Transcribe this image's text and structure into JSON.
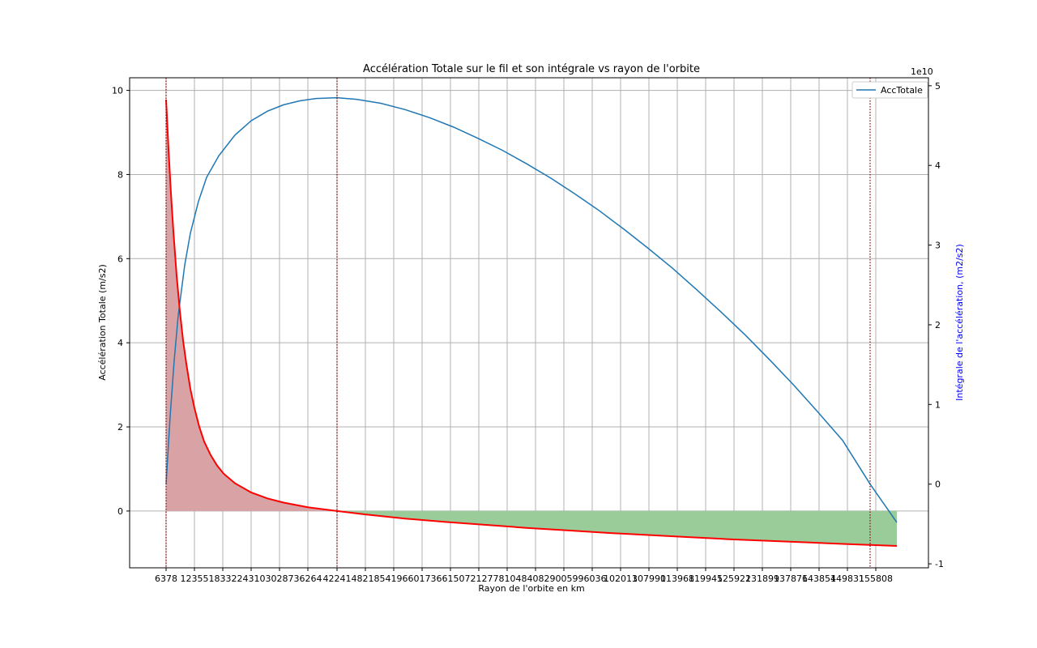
{
  "chart_data": {
    "type": "line",
    "title": "Accélération Totale sur le fil et son intégrale vs rayon de l'orbite",
    "xlabel": "Rayon de l'orbite en km",
    "ylabel": "Accélération Totale (m/s2)",
    "ylabel_right": "Intégrale de l'accélération, (m2/s2)",
    "right_axis_offset_label": "1e10",
    "xlim": [
      160,
      1146
    ],
    "ylim": [
      -1.35,
      10.3
    ],
    "ylim_right": [
      -1.05,
      5.1
    ],
    "x_ticks": [
      "6378",
      "12355",
      "18332",
      "24310",
      "30287",
      "36264",
      "42241",
      "48218",
      "54196",
      "60173",
      "66150",
      "72127",
      "78104",
      "84082",
      "90059",
      "96036",
      "102013",
      "107990",
      "113968",
      "119945",
      "125922",
      "131899",
      "137876",
      "143854",
      "149831",
      "155808"
    ],
    "x_tick_values": [
      205,
      240,
      275,
      310,
      345,
      380,
      416,
      451,
      486,
      521,
      556,
      591,
      626,
      661,
      696,
      731,
      766,
      801,
      836,
      871,
      906,
      941,
      976,
      1011,
      1046,
      1081
    ],
    "y_ticks": [
      0,
      2,
      4,
      6,
      8,
      10
    ],
    "y_ticks_right": [
      -1,
      0,
      1,
      2,
      3,
      4,
      5
    ],
    "x_start": 205,
    "x_geo": 416,
    "x_end": 1107,
    "vlines": [
      205,
      416,
      1074
    ],
    "grid": true,
    "legend_position": "upper-right",
    "series": [
      {
        "name": "AccTotale",
        "axis": "right",
        "color": "#1f77b4",
        "points": [
          [
            205,
            0
          ],
          [
            210,
            0.85
          ],
          [
            215,
            1.55
          ],
          [
            220,
            2.12
          ],
          [
            228,
            2.75
          ],
          [
            235,
            3.15
          ],
          [
            245,
            3.55
          ],
          [
            255,
            3.85
          ],
          [
            270,
            4.12
          ],
          [
            290,
            4.38
          ],
          [
            310,
            4.56
          ],
          [
            330,
            4.68
          ],
          [
            350,
            4.76
          ],
          [
            370,
            4.81
          ],
          [
            390,
            4.84
          ],
          [
            416,
            4.85
          ],
          [
            440,
            4.83
          ],
          [
            470,
            4.78
          ],
          [
            500,
            4.7
          ],
          [
            530,
            4.6
          ],
          [
            560,
            4.48
          ],
          [
            590,
            4.34
          ],
          [
            620,
            4.19
          ],
          [
            650,
            4.02
          ],
          [
            680,
            3.84
          ],
          [
            710,
            3.64
          ],
          [
            740,
            3.43
          ],
          [
            770,
            3.2
          ],
          [
            800,
            2.96
          ],
          [
            830,
            2.71
          ],
          [
            860,
            2.44
          ],
          [
            890,
            2.16
          ],
          [
            920,
            1.87
          ],
          [
            950,
            1.56
          ],
          [
            980,
            1.24
          ],
          [
            1010,
            0.9
          ],
          [
            1040,
            0.55
          ],
          [
            1074,
            0.0
          ],
          [
            1107,
            -0.48
          ]
        ]
      },
      {
        "name": "",
        "axis": "left",
        "color": "#ff0000",
        "points": [
          [
            205,
            9.78
          ],
          [
            208,
            8.6
          ],
          [
            211,
            7.55
          ],
          [
            214,
            6.65
          ],
          [
            218,
            5.6
          ],
          [
            222,
            4.75
          ],
          [
            226,
            4.05
          ],
          [
            230,
            3.5
          ],
          [
            235,
            2.9
          ],
          [
            240,
            2.45
          ],
          [
            246,
            2.0
          ],
          [
            252,
            1.65
          ],
          [
            260,
            1.33
          ],
          [
            268,
            1.08
          ],
          [
            276,
            0.89
          ],
          [
            290,
            0.66
          ],
          [
            310,
            0.44
          ],
          [
            330,
            0.3
          ],
          [
            350,
            0.2
          ],
          [
            380,
            0.09
          ],
          [
            416,
            0.0
          ],
          [
            450,
            -0.08
          ],
          [
            500,
            -0.18
          ],
          [
            550,
            -0.26
          ],
          [
            600,
            -0.33
          ],
          [
            650,
            -0.4
          ],
          [
            700,
            -0.46
          ],
          [
            750,
            -0.52
          ],
          [
            800,
            -0.57
          ],
          [
            850,
            -0.62
          ],
          [
            900,
            -0.67
          ],
          [
            950,
            -0.71
          ],
          [
            1000,
            -0.75
          ],
          [
            1050,
            -0.79
          ],
          [
            1107,
            -0.83
          ]
        ]
      }
    ]
  }
}
